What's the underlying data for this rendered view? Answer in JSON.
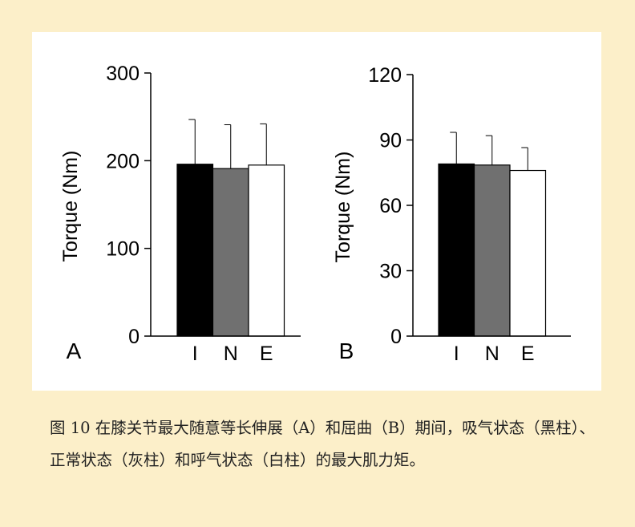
{
  "chart_data": [
    {
      "type": "bar",
      "panel_label": "A",
      "ylabel": "Torque (Nm)",
      "categories": [
        "I",
        "N",
        "E"
      ],
      "values": [
        196,
        191,
        195
      ],
      "errors": [
        51,
        50,
        47
      ],
      "colors": [
        "#000000",
        "#707070",
        "#ffffff"
      ],
      "ylim": [
        0,
        300
      ],
      "yticks": [
        0,
        100,
        200,
        300
      ]
    },
    {
      "type": "bar",
      "panel_label": "B",
      "ylabel": "Torque (Nm)",
      "categories": [
        "I",
        "N",
        "E"
      ],
      "values": [
        79,
        78.5,
        76
      ],
      "errors": [
        14.5,
        13.5,
        10.5
      ],
      "colors": [
        "#000000",
        "#707070",
        "#ffffff"
      ],
      "ylim": [
        0,
        120
      ],
      "yticks": [
        0,
        30,
        60,
        90,
        120
      ]
    }
  ],
  "caption": "图 10  在膝关节最大随意等长伸展（A）和屈曲（B）期间，吸气状态（黑柱）、正常状态（灰柱）和呼气状态（白柱）的最大肌力矩。"
}
